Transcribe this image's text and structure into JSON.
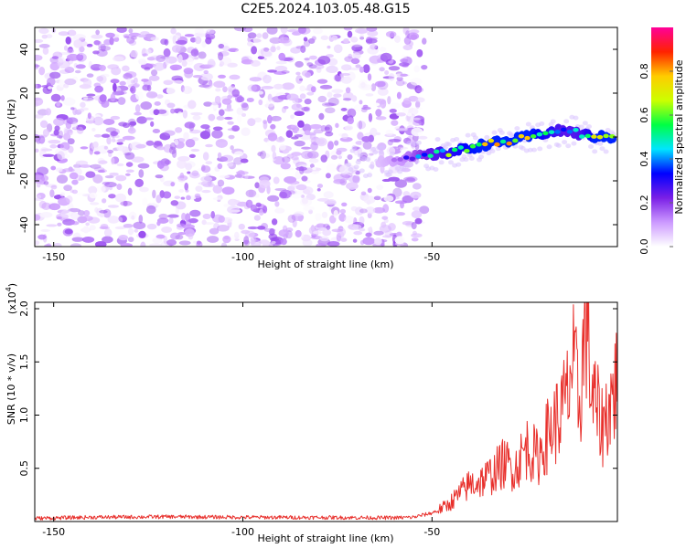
{
  "title": "C2E5.2024.103.05.48.G15",
  "chart_data": [
    {
      "type": "heatmap",
      "xlabel": "Height of straight line (km)",
      "ylabel": "Frequency (Hz)",
      "xlim": [
        -155,
        -1
      ],
      "ylim": [
        -50,
        50
      ],
      "xticks": [
        -150,
        -100,
        -50
      ],
      "yticks": [
        -40,
        -20,
        0,
        20,
        40
      ],
      "colorbar": {
        "label": "Normalized spectral amplitude",
        "range": [
          0,
          1
        ],
        "ticks": [
          0.0,
          0.2,
          0.4,
          0.6,
          0.8
        ],
        "stops": [
          "#ffffff",
          "#cc99ff",
          "#7a1fe6",
          "#0000ff",
          "#00e5ff",
          "#00ff44",
          "#ccff00",
          "#ffcc00",
          "#ff2200",
          "#ff0099"
        ]
      },
      "noise_region": {
        "x_range": [
          -155,
          -52
        ],
        "amplitude_range": [
          0.0,
          0.12
        ]
      },
      "signal_ridge": [
        {
          "x": -64,
          "y": -11,
          "v": 0.15
        },
        {
          "x": -58,
          "y": -10,
          "v": 0.25
        },
        {
          "x": -50,
          "y": -8,
          "v": 0.55
        },
        {
          "x": -45,
          "y": -7,
          "v": 0.65
        },
        {
          "x": -40,
          "y": -5,
          "v": 0.75
        },
        {
          "x": -35,
          "y": -3,
          "v": 0.8
        },
        {
          "x": -30,
          "y": -2,
          "v": 0.85
        },
        {
          "x": -25,
          "y": 0,
          "v": 0.8
        },
        {
          "x": -20,
          "y": 2,
          "v": 0.7
        },
        {
          "x": -15,
          "y": 3,
          "v": 0.55
        },
        {
          "x": -10,
          "y": 1,
          "v": 0.6
        },
        {
          "x": -6,
          "y": 0,
          "v": 0.85
        },
        {
          "x": -2,
          "y": 0,
          "v": 0.9
        }
      ]
    },
    {
      "type": "line",
      "xlabel": "Height of straight line (km)",
      "ylabel": "SNR (10 * v/v)",
      "y_multiplier": "(x10",
      "y_multiplier_exp": "4",
      "y_multiplier_close": ")",
      "xlim": [
        -155,
        -1
      ],
      "ylim": [
        0,
        20600
      ],
      "xticks": [
        -150,
        -100,
        -50
      ],
      "yticks": [
        5000,
        10000,
        15000,
        20000
      ],
      "ytick_labels": [
        "0.5",
        "1.0",
        "1.5",
        "2.0"
      ],
      "color": "#e8302c",
      "series": [
        {
          "x": [
            -155,
            -140,
            -120,
            -100,
            -80,
            -60,
            -55,
            -50,
            -46,
            -43,
            -40,
            -37,
            -34,
            -31,
            -28,
            -25,
            -22,
            -19,
            -16,
            -14,
            -13,
            -11,
            -9,
            -8,
            -6,
            -5,
            -3,
            -2,
            -1
          ],
          "y": [
            300,
            400,
            450,
            400,
            380,
            350,
            400,
            800,
            1500,
            2500,
            3500,
            3800,
            4500,
            5500,
            5000,
            7000,
            6000,
            8500,
            10000,
            12000,
            15000,
            11000,
            20500,
            12000,
            10000,
            9000,
            11000,
            12000,
            13500
          ]
        }
      ]
    }
  ]
}
